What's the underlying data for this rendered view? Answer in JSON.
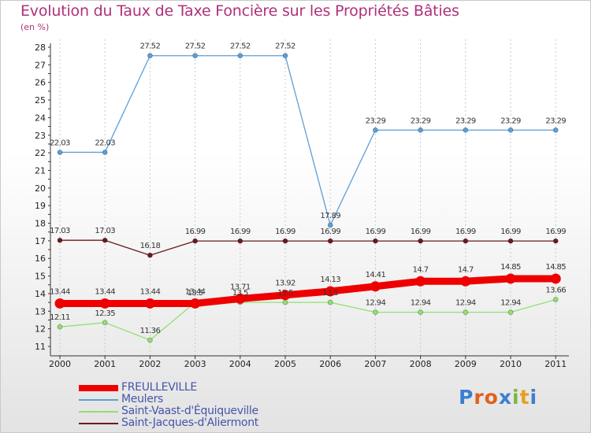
{
  "title": "Evolution du Taux de Taxe Foncière sur les Propriétés Bâties",
  "subtitle": "(en %)",
  "logo": {
    "text": "Proxiti",
    "colors": [
      "#3a7fd0",
      "#e0601e",
      "#e0601e",
      "#3a7fd0",
      "#7ab83c",
      "#e6a020",
      "#3a7fd0"
    ]
  },
  "chart_data": {
    "type": "line",
    "title": "Evolution du Taux de Taxe Foncière sur les Propriétés Bâties",
    "ylabel": "(en %)",
    "xlabel": "",
    "ylim": [
      11,
      28
    ],
    "yticks": [
      11,
      12,
      13,
      14,
      15,
      16,
      17,
      18,
      19,
      20,
      21,
      22,
      23,
      24,
      25,
      26,
      27,
      28
    ],
    "categories": [
      "2000",
      "2001",
      "2002",
      "2003",
      "2004",
      "2005",
      "2006",
      "2007",
      "2008",
      "2009",
      "2010",
      "2011"
    ],
    "grid": "vertical-dashed",
    "legend_position": "bottom-left",
    "series": [
      {
        "name": "FREULLEVILLE",
        "color": "#ee0000",
        "emphasis": true,
        "values": [
          13.44,
          13.44,
          13.44,
          13.44,
          13.71,
          13.92,
          14.13,
          14.41,
          14.7,
          14.7,
          14.85,
          14.85
        ],
        "labels": [
          "13.44",
          "13.44",
          "13.44",
          "13.44",
          "13.71",
          "13.92",
          "14.13",
          "14.41",
          "14.7",
          "14.7",
          "14.85",
          "14.85"
        ]
      },
      {
        "name": "Meulers",
        "color": "#5b9fd8",
        "emphasis": false,
        "values": [
          22.03,
          22.03,
          27.52,
          27.52,
          27.52,
          27.52,
          17.89,
          23.29,
          23.29,
          23.29,
          23.29,
          23.29
        ],
        "labels": [
          "22.03",
          "22.03",
          "27.52",
          "27.52",
          "27.52",
          "27.52",
          "17.89",
          "23.29",
          "23.29",
          "23.29",
          "23.29",
          "23.29"
        ]
      },
      {
        "name": "Saint-Vaast-d'Équiqueville",
        "color": "#90e070",
        "emphasis": false,
        "values": [
          12.11,
          12.35,
          11.36,
          13.5,
          13.5,
          13.5,
          13.5,
          12.94,
          12.94,
          12.94,
          12.94,
          13.66
        ],
        "labels": [
          "12.11",
          "12.35",
          "11.36",
          "13.5",
          "13.5",
          "13.5",
          "13.5",
          "12.94",
          "12.94",
          "12.94",
          "12.94",
          "13.66"
        ]
      },
      {
        "name": "Saint-Jacques-d'Aliermont",
        "color": "#6b1a1a",
        "emphasis": false,
        "values": [
          17.03,
          17.03,
          16.18,
          16.99,
          16.99,
          16.99,
          16.99,
          16.99,
          16.99,
          16.99,
          16.99,
          16.99
        ],
        "labels": [
          "17.03",
          "17.03",
          "16.18",
          "16.99",
          "16.99",
          "16.99",
          "16.99",
          "16.99",
          "16.99",
          "16.99",
          "16.99",
          "16.99"
        ]
      }
    ]
  }
}
